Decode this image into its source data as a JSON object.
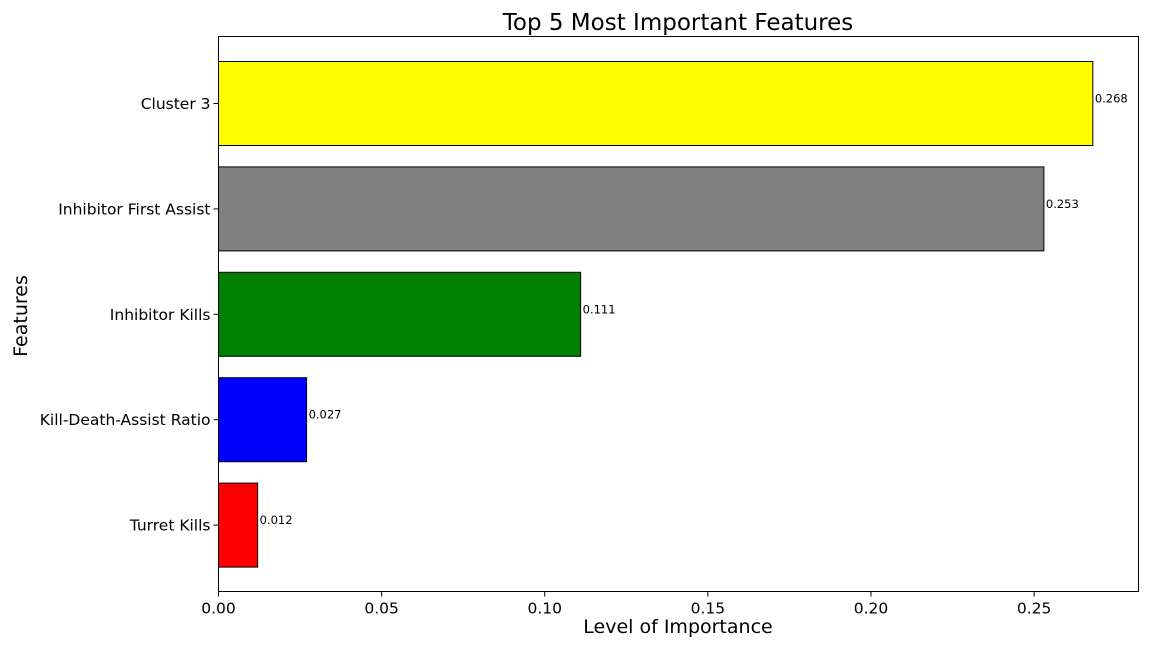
{
  "chart_data": {
    "type": "bar",
    "orientation": "horizontal",
    "title": "Top 5 Most Important Features",
    "xlabel": "Level of Importance",
    "ylabel": "Features",
    "categories": [
      "Cluster 3",
      "Inhibitor First Assist",
      "Inhibitor Kills",
      "Kill-Death-Assist Ratio",
      "Turret Kills"
    ],
    "values": [
      0.268,
      0.253,
      0.111,
      0.027,
      0.012
    ],
    "data_labels": [
      "0.268",
      "0.253",
      "0.111",
      "0.027",
      "0.012"
    ],
    "colors": [
      "#ffff00",
      "#808080",
      "#008000",
      "#0000ff",
      "#ff0000"
    ],
    "xlim": [
      0,
      0.282
    ],
    "xticks": [
      0.0,
      0.05,
      0.1,
      0.15,
      0.2,
      0.25
    ],
    "xtick_labels": [
      "0.00",
      "0.05",
      "0.10",
      "0.15",
      "0.20",
      "0.25"
    ],
    "grid": false,
    "legend": "none"
  }
}
